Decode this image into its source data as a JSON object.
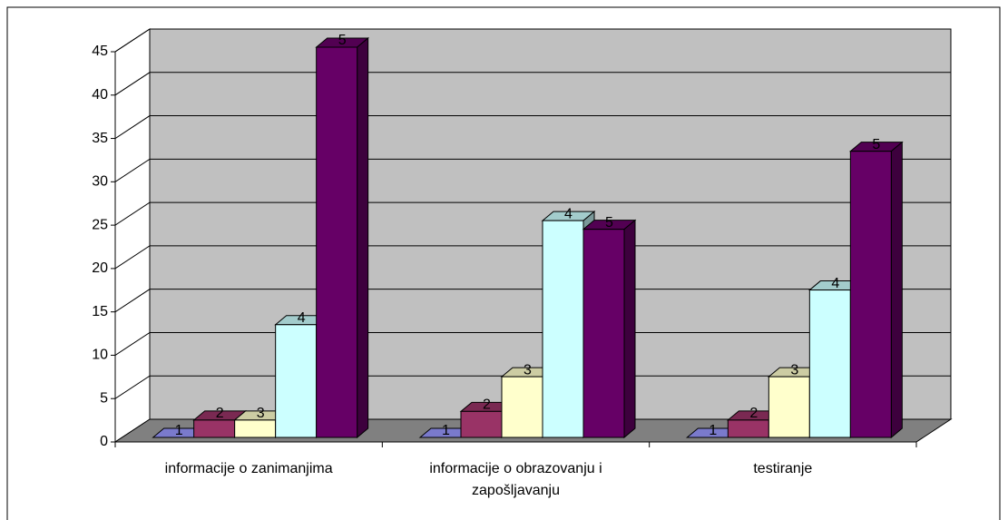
{
  "chart_data": {
    "type": "bar3d",
    "categories": [
      "informacije o zanimanjima",
      "informacije o obrazovanju i zapošljavanju",
      "testiranje"
    ],
    "series": [
      {
        "name": "1",
        "color": "#9999ff",
        "values": [
          0,
          0,
          0
        ]
      },
      {
        "name": "2",
        "color": "#993366",
        "values": [
          2,
          3,
          2
        ]
      },
      {
        "name": "3",
        "color": "#ffffcc",
        "values": [
          2,
          7,
          7
        ]
      },
      {
        "name": "4",
        "color": "#ccffff",
        "values": [
          13,
          25,
          17
        ]
      },
      {
        "name": "5",
        "color": "#660066",
        "values": [
          45,
          24,
          33
        ]
      }
    ],
    "ylim": [
      0,
      45
    ],
    "yticks": [
      0,
      5,
      10,
      15,
      20,
      25,
      30,
      35,
      40,
      45
    ],
    "grid": true
  }
}
